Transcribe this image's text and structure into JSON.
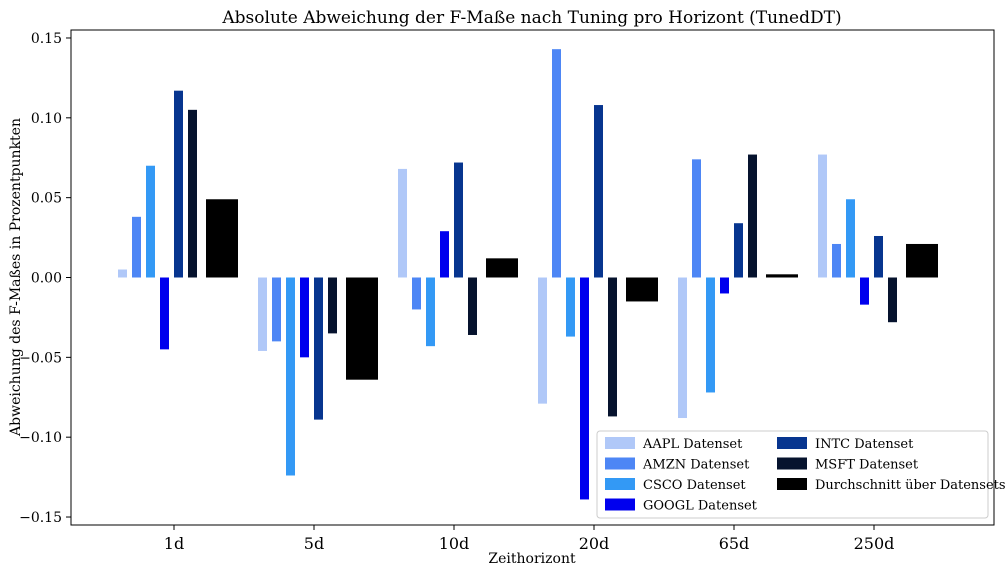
{
  "chart_data": {
    "type": "bar",
    "title": "Absolute Abweichung der F-Maße nach Tuning pro Horizont (TunedDT)",
    "xlabel": "Zeithorizont",
    "ylabel": "Abweichung des F-Maßes in Prozentpunkten",
    "categories": [
      "1d",
      "5d",
      "10d",
      "20d",
      "65d",
      "250d"
    ],
    "ylim": [
      -0.155,
      0.155
    ],
    "yticks": [
      -0.15,
      -0.1,
      -0.05,
      0.0,
      0.05,
      0.1,
      0.15
    ],
    "ytick_labels": [
      "−0.15",
      "−0.10",
      "−0.05",
      "0.00",
      "0.05",
      "0.10",
      "0.15"
    ],
    "grid": false,
    "legend_position": "lower-right",
    "series": [
      {
        "name": "AAPL Datenset",
        "color": "#b0c8f8",
        "values": [
          0.005,
          -0.046,
          0.068,
          -0.079,
          -0.088,
          0.077
        ]
      },
      {
        "name": "AMZN Datenset",
        "color": "#4d86f5",
        "values": [
          0.038,
          -0.04,
          -0.02,
          0.143,
          0.074,
          0.021
        ]
      },
      {
        "name": "CSCO Datenset",
        "color": "#3399f5",
        "values": [
          0.07,
          -0.124,
          -0.043,
          -0.037,
          -0.072,
          0.049
        ]
      },
      {
        "name": "GOOGL Datenset",
        "color": "#0000ee",
        "values": [
          -0.045,
          -0.05,
          0.029,
          -0.139,
          -0.01,
          -0.017
        ]
      },
      {
        "name": "INTC Datenset",
        "color": "#07358f",
        "values": [
          0.117,
          -0.089,
          0.072,
          0.108,
          0.034,
          0.026
        ]
      },
      {
        "name": "MSFT Datenset",
        "color": "#06132e",
        "values": [
          0.105,
          -0.035,
          -0.036,
          -0.087,
          0.077,
          -0.028
        ]
      },
      {
        "name": "Durchschnitt über Datensets",
        "color": "#000000",
        "values": [
          0.049,
          -0.064,
          0.012,
          -0.015,
          0.002,
          0.021
        ]
      }
    ]
  }
}
